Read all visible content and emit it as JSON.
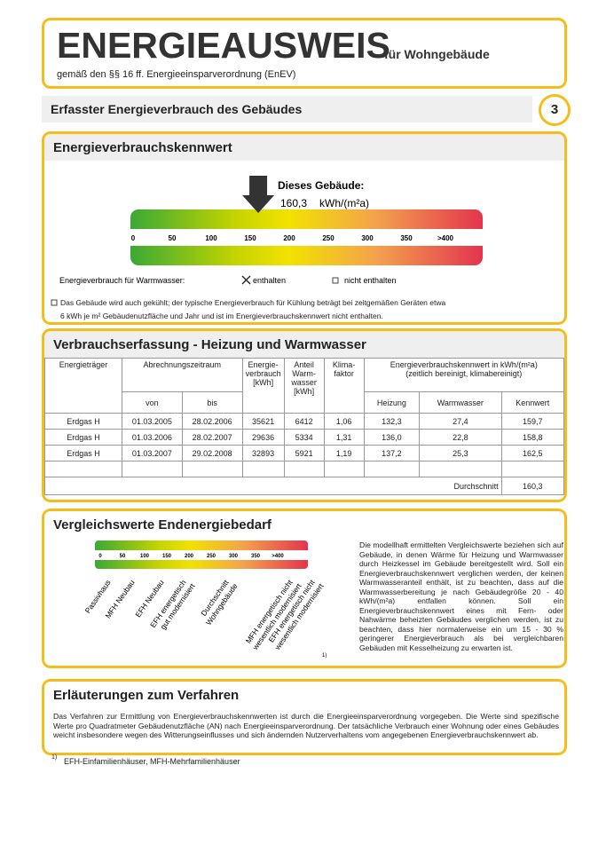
{
  "header": {
    "title": "ENERGIEAUSWEIS",
    "subtitle": "für Wohngebäude",
    "legal_basis": "gemäß den §§ 16 ff. Energieeinsparverordnung (EnEV)"
  },
  "section": {
    "title": "Erfasster Energieverbrauch des Gebäudes",
    "page": "3"
  },
  "kennwert": {
    "title": "Energieverbrauchskennwert",
    "marker_label": "Dieses Gebäude:",
    "value": 160.3,
    "value_label": "160,3",
    "unit": "kWh/(m²a)",
    "scale_ticks": [
      0,
      50,
      100,
      150,
      200,
      250,
      300,
      350,
      {
        "value": 400,
        "label": ">400"
      }
    ],
    "warmwasser_label": "Energieverbrauch für Warmwasser:",
    "options": [
      {
        "label": "enthalten",
        "checked": true
      },
      {
        "label": "nicht enthalten",
        "checked": false
      }
    ],
    "cooling_note": "Das Gebäude wird auch gekühlt; der typische Energieverbrauch für Kühlung beträgt bei zeitgemäßen Geräten etwa 6 kWh je m² Gebäudenutzfläche und Jahr und ist im Energieverbrauchskennwert nicht enthalten."
  },
  "verbrauch": {
    "title": "Verbrauchserfassung - Heizung und Warmwasser",
    "headers": {
      "traeger": "Energieträger",
      "zeitraum": "Abrechnungszeitraum",
      "von": "von",
      "bis": "bis",
      "verbrauch": "Energie-verbrauch [kWh]",
      "warmwasser": "Anteil Warm-wasser [kWh]",
      "klima": "Klima-faktor",
      "kennwert": "Energieverbrauchskennwert in kWh/(m²a)",
      "kennwert_note": "(zeitlich bereinigt, klimabereinigt)",
      "heizung": "Heizung",
      "ww": "Warmwasser",
      "kw": "Kennwert"
    },
    "rows": [
      [
        "Erdgas H",
        "01.03.2005",
        "28.02.2006",
        "35621",
        "6412",
        "1,06",
        "132,3",
        "27,4",
        "159,7"
      ],
      [
        "Erdgas H",
        "01.03.2006",
        "28.02.2007",
        "29636",
        "5334",
        "1,31",
        "136,0",
        "22,8",
        "158,8"
      ],
      [
        "Erdgas H",
        "01.03.2007",
        "29.02.2008",
        "32893",
        "5921",
        "1,19",
        "137,2",
        "25,3",
        "162,5"
      ]
    ],
    "average_label": "Durchschnitt",
    "average": "160,3"
  },
  "vergleich": {
    "title": "Vergleichswerte Endenergiebedarf",
    "scale_ticks": [
      0,
      50,
      100,
      150,
      200,
      250,
      300,
      350,
      {
        "value": 400,
        "label": ">400"
      }
    ],
    "labels": [
      [
        "Passivhaus"
      ],
      [
        "MFH Neubau"
      ],
      [
        "EFH Neubau"
      ],
      [
        "EFH energetisch",
        "gut modernisiert"
      ],
      [
        "Durchschnitt",
        "Wohngebäude"
      ],
      [
        "MFH energetisch nicht",
        "wesentlich modernisiert"
      ],
      [
        "EFH energetisch nicht",
        "wesentlich modernisiert"
      ]
    ],
    "footnote_mark": "1)",
    "text": "Die modellhaft ermittelten Vergleichswerte beziehen sich auf Gebäude, in denen Wärme für Heizung und Warmwasser durch Heizkessel im Gebäude bereitgestellt wird. Soll ein Energieverbrauchskennwert verglichen werden, der keinen Warmwasseranteil enthält, ist zu beachten, dass auf die Warmwasserbereitung je nach Gebäudegröße 20 - 40 kWh/(m²a) entfallen können. Soll ein Energieverbrauchskennwert eines mit Fern- oder Nahwärme beheizten Gebäudes verglichen werden, ist zu beachten, dass hier normalerweise ein um 15 - 30 % geringerer Energieverbrauch als bei vergleichbaren Gebäuden mit Kesselheizung zu erwarten ist."
  },
  "erlaeuterung": {
    "title": "Erläuterungen zum Verfahren",
    "text": "Das Verfahren zur Ermittlung von Energieverbrauchskennwerten ist durch die Energieeinsparverordnung vorgegeben. Die Werte sind spezifische Werte pro Quadratmeter Gebäudenutzfläche (AN) nach Energieeinsparverordnung. Der tatsächliche Verbrauch einer Wohnung oder eines Gebäudes weicht insbesondere wegen des Witterungseinflusses und sich ändernden Nutzerverhaltens vom angegebenen Energieverbrauchskennwert ab."
  },
  "footnote": {
    "mark": "1)",
    "text": "EFH-Einfamilienhäuser, MFH-Mehrfamilienhäuser"
  }
}
